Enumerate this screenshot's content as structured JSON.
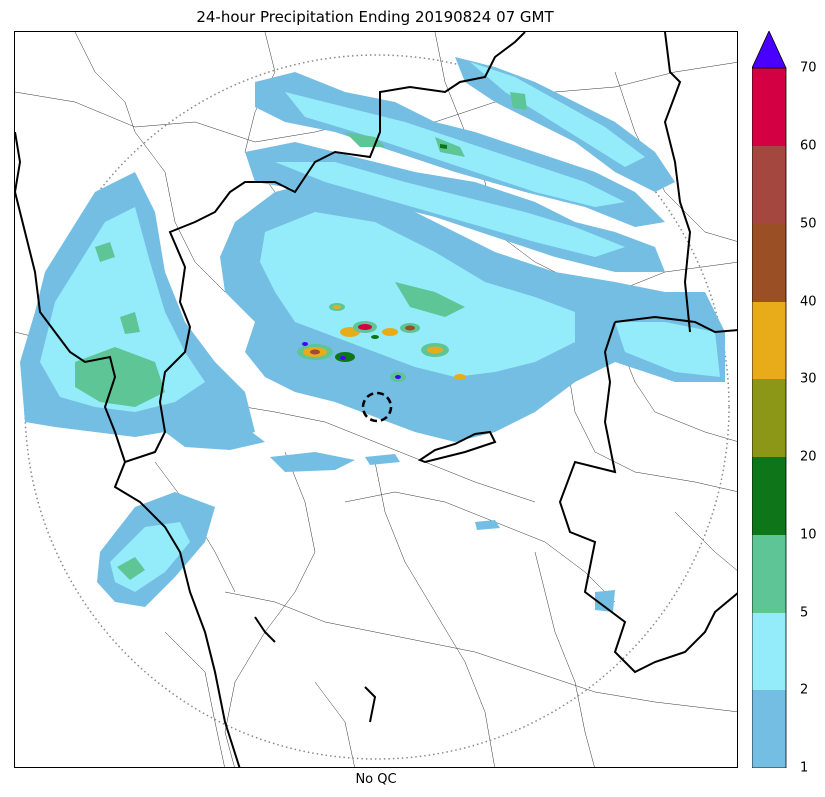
{
  "title": "24-hour Precipitation Ending 20190824 07 GMT",
  "xlabel": "No QC",
  "colorbar": {
    "levels": [
      "1",
      "2",
      "5",
      "10",
      "20",
      "30",
      "40",
      "50",
      "60",
      "70"
    ],
    "colors": [
      "#74bde3",
      "#94ecfb",
      "#5ec597",
      "#0f7519",
      "#8c9617",
      "#e8ac1b",
      "#9b4f25",
      "#a4483f",
      "#d30043"
    ],
    "overflow_color": "#4a00ff",
    "extend": "max"
  },
  "map": {
    "radar_range_ring": "dotted",
    "radar_site_marker": "dashed circle",
    "boundaries": [
      "state borders (bold)",
      "district borders (thin)"
    ]
  }
}
